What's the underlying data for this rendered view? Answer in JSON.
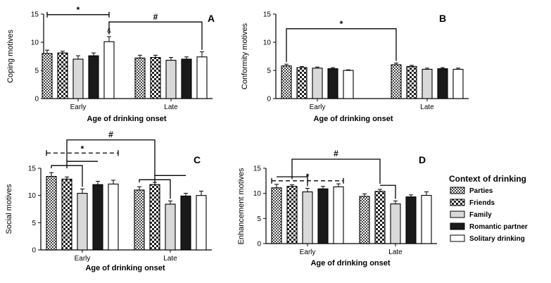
{
  "legend": {
    "title": "Context of drinking",
    "entries": [
      {
        "name": "Parties",
        "pattern": "check-fine"
      },
      {
        "name": "Friends",
        "pattern": "check-coarse"
      },
      {
        "name": "Family",
        "pattern": "light-gray"
      },
      {
        "name": "Romantic partner",
        "pattern": "black"
      },
      {
        "name": "Solitary drinking",
        "pattern": "white"
      }
    ]
  },
  "colors": {
    "gray_fill": "#d9d9d9",
    "dark_fill": "#1a1a1a",
    "check_dark": "#444444",
    "check_light": "#ffffff",
    "axis": "#000000"
  },
  "chart_data": [
    {
      "panel": "A",
      "type": "bar",
      "ylabel": "Coping motives",
      "xlabel": "Age of drinking onset",
      "categories": [
        "Early",
        "Late"
      ],
      "ylim": [
        0,
        15
      ],
      "yticks": [
        0,
        5,
        10,
        15
      ],
      "series": [
        {
          "name": "Parties",
          "values": [
            8.0,
            7.2
          ],
          "errors": [
            0.6,
            0.5
          ]
        },
        {
          "name": "Friends",
          "values": [
            8.1,
            7.3
          ],
          "errors": [
            0.3,
            0.4
          ]
        },
        {
          "name": "Family",
          "values": [
            7.0,
            6.8
          ],
          "errors": [
            0.6,
            0.5
          ]
        },
        {
          "name": "Romantic partner",
          "values": [
            7.6,
            7.0
          ],
          "errors": [
            0.5,
            0.4
          ]
        },
        {
          "name": "Solitary drinking",
          "values": [
            10.1,
            7.4
          ],
          "errors": [
            0.9,
            0.9
          ]
        }
      ],
      "annotations": [
        {
          "label": "*",
          "style": "bar",
          "from": {
            "group": 0,
            "series": 0
          },
          "to": {
            "group": 0,
            "series": 4
          },
          "y": 14.9
        },
        {
          "label": "#",
          "style": "bracket",
          "from": {
            "group": 0,
            "series": 4
          },
          "to": {
            "group": 1,
            "series": 4
          },
          "y": 13.6
        },
        {
          "label": "&",
          "style": "text",
          "at": {
            "group": 0,
            "series": 4
          },
          "y": 11.7
        }
      ]
    },
    {
      "panel": "B",
      "type": "bar",
      "ylabel": "Conformity motives",
      "xlabel": "Age of drinking onset",
      "categories": [
        "Early",
        "Late"
      ],
      "ylim": [
        0,
        15
      ],
      "yticks": [
        0,
        5,
        10,
        15
      ],
      "series": [
        {
          "name": "Parties",
          "values": [
            5.8,
            6.0
          ],
          "errors": [
            0.3,
            0.3
          ]
        },
        {
          "name": "Friends",
          "values": [
            5.5,
            5.7
          ],
          "errors": [
            0.2,
            0.2
          ]
        },
        {
          "name": "Family",
          "values": [
            5.4,
            5.2
          ],
          "errors": [
            0.2,
            0.2
          ]
        },
        {
          "name": "Romantic partner",
          "values": [
            5.3,
            5.3
          ],
          "errors": [
            0.2,
            0.2
          ]
        },
        {
          "name": "Solitary drinking",
          "values": [
            5.0,
            5.2
          ],
          "errors": [
            0.1,
            0.2
          ]
        }
      ],
      "annotations": [
        {
          "label": "*",
          "style": "bracket",
          "from": {
            "group": 0,
            "series": 0
          },
          "to": {
            "group": 1,
            "series": 0
          },
          "y": 12.4
        }
      ]
    },
    {
      "panel": "C",
      "type": "bar",
      "ylabel": "Social motives",
      "xlabel": "Age of drinking onset",
      "categories": [
        "Early",
        "Late"
      ],
      "ylim": [
        0,
        15
      ],
      "yticks": [
        0,
        5,
        10,
        15
      ],
      "series": [
        {
          "name": "Parties",
          "values": [
            13.5,
            11.0
          ],
          "errors": [
            0.7,
            0.6
          ]
        },
        {
          "name": "Friends",
          "values": [
            13.0,
            12.0
          ],
          "errors": [
            0.4,
            0.4
          ]
        },
        {
          "name": "Family",
          "values": [
            10.4,
            8.4
          ],
          "errors": [
            0.8,
            0.6
          ]
        },
        {
          "name": "Romantic partner",
          "values": [
            12.0,
            9.9
          ],
          "errors": [
            0.6,
            0.5
          ]
        },
        {
          "name": "Solitary drinking",
          "values": [
            12.1,
            10.0
          ],
          "errors": [
            0.7,
            0.8
          ]
        }
      ],
      "annotations": [
        {
          "label": "*",
          "style": "dashed",
          "from": {
            "group": 0,
            "series": 0
          },
          "to": {
            "group": 0,
            "series": 4
          },
          "y": 17.8
        },
        {
          "label": "#",
          "style": "group-bracket",
          "groups": [
            0,
            1
          ],
          "y": 20.2
        }
      ]
    },
    {
      "panel": "D",
      "type": "bar",
      "ylabel": "Enhancement motives",
      "xlabel": "Age of drinking onset",
      "categories": [
        "Early",
        "Late"
      ],
      "ylim": [
        0,
        15
      ],
      "yticks": [
        0,
        5,
        10,
        15
      ],
      "series": [
        {
          "name": "Parties",
          "values": [
            11.1,
            9.4
          ],
          "errors": [
            0.7,
            0.5
          ]
        },
        {
          "name": "Friends",
          "values": [
            11.4,
            10.4
          ],
          "errors": [
            0.3,
            0.4
          ]
        },
        {
          "name": "Family",
          "values": [
            10.3,
            7.9
          ],
          "errors": [
            0.7,
            0.6
          ]
        },
        {
          "name": "Romantic partner",
          "values": [
            10.9,
            9.3
          ],
          "errors": [
            0.5,
            0.4
          ]
        },
        {
          "name": "Solitary drinking",
          "values": [
            11.3,
            9.6
          ],
          "errors": [
            0.6,
            0.7
          ]
        }
      ],
      "annotations": [
        {
          "label": "*",
          "style": "dashed",
          "from": {
            "group": 0,
            "series": 0
          },
          "to": {
            "group": 0,
            "series": 4
          },
          "y": 12.5
        },
        {
          "label": "#",
          "style": "two-bracket",
          "left": {
            "group": 0,
            "series": 1
          },
          "right": {
            "group": 1,
            "series": 1
          },
          "y": 16.8
        }
      ]
    }
  ]
}
